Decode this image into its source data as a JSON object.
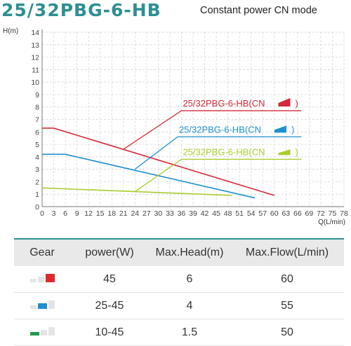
{
  "header": {
    "model": "25/32PBG-6-HB",
    "mode": "Constant power CN mode"
  },
  "chart_data": {
    "type": "line",
    "ylabel": "H(m)",
    "xlabel": "Q(L/min)",
    "xlim": [
      0,
      78
    ],
    "ylim": [
      0,
      14
    ],
    "x_ticks": [
      0,
      3,
      6,
      9,
      12,
      15,
      18,
      21,
      24,
      27,
      30,
      33,
      36,
      39,
      42,
      45,
      48,
      51,
      54,
      57,
      60,
      63,
      66,
      69,
      72,
      75,
      78
    ],
    "y_ticks": [
      0,
      1,
      2,
      3,
      4,
      5,
      6,
      7,
      8,
      9,
      10,
      11,
      12,
      13,
      14
    ],
    "grid": true,
    "series": [
      {
        "name": "25/32PBG-6-HB(CN",
        "gear": "high",
        "color": "#d42a3a",
        "x": [
          0,
          3,
          60
        ],
        "y": [
          6.3,
          6.3,
          0.9
        ]
      },
      {
        "name": "25/32PBG-6-HB(CN",
        "gear": "medium",
        "color": "#1f8fd0",
        "x": [
          0,
          6,
          55
        ],
        "y": [
          4.2,
          4.2,
          0.7
        ]
      },
      {
        "name": "25/32PBG-6-HB(CN",
        "gear": "low",
        "color": "#aacc2f",
        "x": [
          0,
          49
        ],
        "y": [
          1.5,
          0.9
        ]
      }
    ],
    "annotations": [
      {
        "series": 0,
        "color": "#d42a3a",
        "x": [
          21,
          36,
          67
        ],
        "y": [
          4.6,
          7.7,
          7.7
        ]
      },
      {
        "series": 1,
        "color": "#1f8fd0",
        "x": [
          24,
          35,
          67
        ],
        "y": [
          3.0,
          5.6,
          5.6
        ]
      },
      {
        "series": 2,
        "color": "#aacc2f",
        "x": [
          24,
          36,
          67
        ],
        "y": [
          1.2,
          3.8,
          3.8
        ]
      }
    ],
    "legend": [
      {
        "text": "25/32PBG-6-HB(CN",
        "close": ")",
        "color": "#d42a3a"
      },
      {
        "text": "25/32PBG-6-HB(CN",
        "close": ")",
        "color": "#1f8fd0"
      },
      {
        "text": "25/32PBG-6-HB(CN",
        "close": ")",
        "color": "#aacc2f"
      }
    ]
  },
  "table": {
    "headers": [
      "Gear",
      "power(W)",
      "Max.Head(m)",
      "Max.Flow(L/min)"
    ],
    "rows": [
      {
        "gear_level": 3,
        "gear_color": "#e02a2a",
        "power": "45",
        "head": "6",
        "flow": "60"
      },
      {
        "gear_level": 2,
        "gear_color": "#1f8fd0",
        "power": "25-45",
        "head": "4",
        "flow": "55"
      },
      {
        "gear_level": 1,
        "gear_color": "#1d9a4a",
        "power": "10-45",
        "head": "1.5",
        "flow": "50"
      }
    ]
  }
}
